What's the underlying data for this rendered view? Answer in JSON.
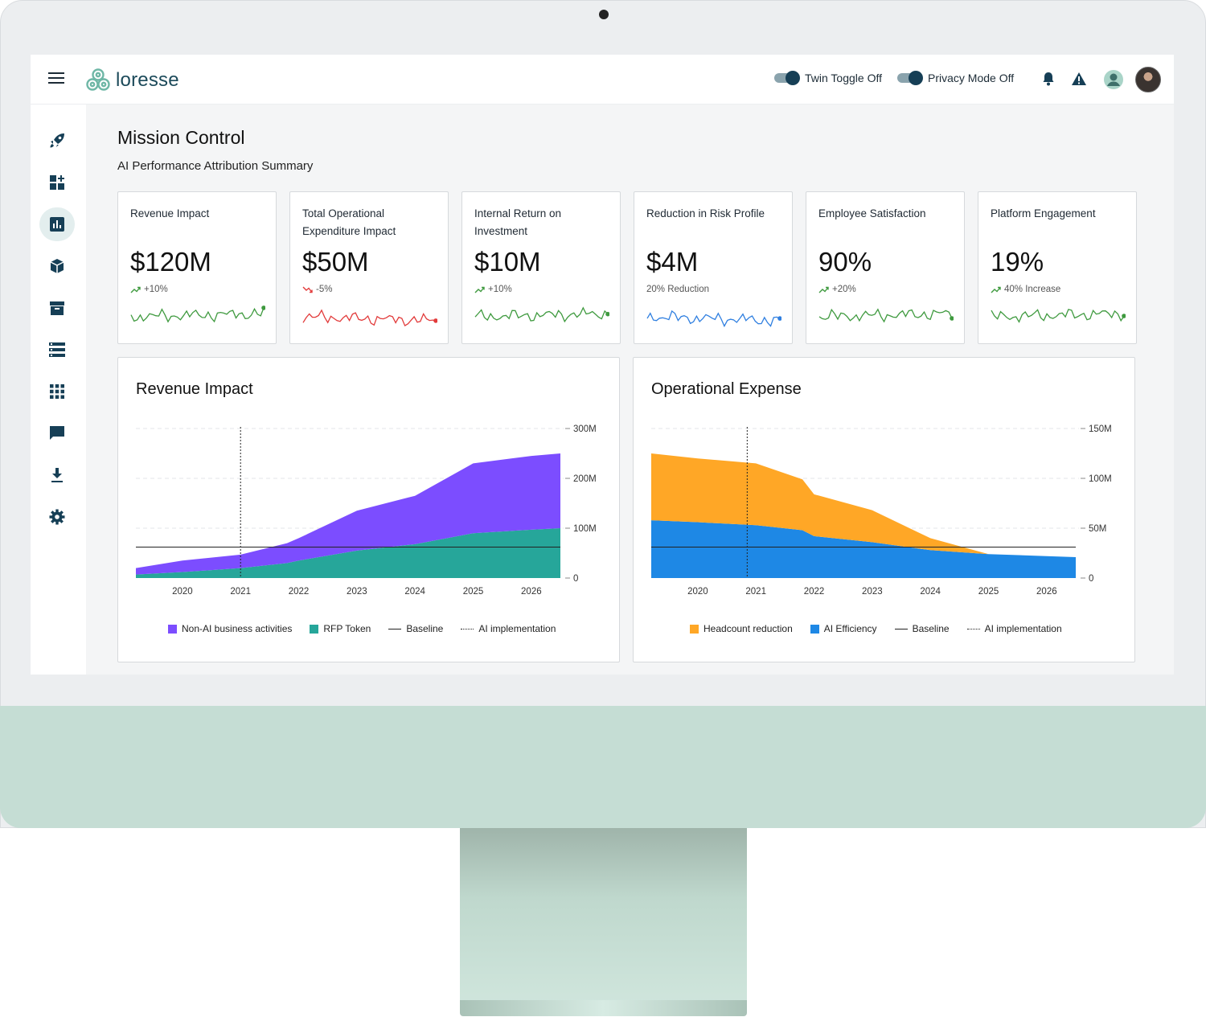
{
  "brand": {
    "name": "loresse"
  },
  "header": {
    "toggles": [
      {
        "label": "Twin Toggle Off"
      },
      {
        "label": "Privacy Mode Off"
      }
    ],
    "icons": [
      "bell-icon",
      "warning-icon",
      "contact-icon",
      "user-avatar"
    ]
  },
  "sidebar": {
    "items": [
      {
        "icon": "rocket-icon"
      },
      {
        "icon": "dashboard-add-icon"
      },
      {
        "icon": "analytics-icon",
        "active": true
      },
      {
        "icon": "cube-icon"
      },
      {
        "icon": "archive-icon"
      },
      {
        "icon": "list-icon"
      },
      {
        "icon": "apps-grid-icon"
      },
      {
        "icon": "chat-icon"
      },
      {
        "icon": "download-icon"
      },
      {
        "icon": "settings-icon"
      }
    ]
  },
  "page": {
    "title": "Mission Control",
    "subtitle": "AI Performance Attribution Summary"
  },
  "kpis": [
    {
      "label": "Revenue Impact",
      "value": "$120M",
      "delta": "+10%",
      "trend": "up",
      "color": "#3f9a3f"
    },
    {
      "label": "Total Operational Expenditure Impact",
      "value": "$50M",
      "delta": "-5%",
      "trend": "down",
      "color": "#e23b3b"
    },
    {
      "label": "Internal Return on Investment",
      "value": "$10M",
      "delta": "+10%",
      "trend": "up",
      "color": "#3f9a3f"
    },
    {
      "label": "Reduction in Risk Profile",
      "value": "$4M",
      "delta": "20% Reduction",
      "trend": "none",
      "color": "#2f7fe0"
    },
    {
      "label": "Employee Satisfaction",
      "value": "90%",
      "delta": "+20%",
      "trend": "up",
      "color": "#3f9a3f"
    },
    {
      "label": "Platform Engagement",
      "value": "19%",
      "delta": "40% Increase",
      "trend": "up",
      "color": "#3f9a3f"
    }
  ],
  "chart_data": [
    {
      "type": "area",
      "title": "Revenue Impact",
      "x": [
        2019.2,
        2020.0,
        2021.0,
        2021.8,
        2022.0,
        2023.0,
        2024.0,
        2025.0,
        2026.0,
        2026.5
      ],
      "xticks": [
        "2020",
        "2021",
        "2022",
        "2023",
        "2024",
        "2025",
        "2026"
      ],
      "yticks": [
        "300M",
        "200M",
        "100M",
        "0"
      ],
      "ylim": [
        0,
        300
      ],
      "stacked": true,
      "series": [
        {
          "name": "RFP Token",
          "color": "#26a69a",
          "values": [
            7,
            12,
            20,
            30,
            35,
            55,
            68,
            90,
            97,
            100
          ]
        },
        {
          "name": "Non-AI business activities",
          "color": "#7c4dff",
          "values": [
            13,
            23,
            27,
            40,
            45,
            80,
            97,
            140,
            148,
            150
          ]
        }
      ],
      "baseline": {
        "name": "Baseline",
        "value": 62
      },
      "marker": {
        "name": "AI implementation",
        "x": 2021.0
      },
      "legend": [
        "Non-AI business activities",
        "RFP Token",
        "Baseline",
        "AI implementation"
      ]
    },
    {
      "type": "area",
      "title": "Operational Expense",
      "x": [
        2019.2,
        2020.0,
        2021.0,
        2021.8,
        2022.0,
        2023.0,
        2024.0,
        2025.0,
        2026.0,
        2026.5
      ],
      "xticks": [
        "2020",
        "2021",
        "2022",
        "2023",
        "2024",
        "2025",
        "2026"
      ],
      "yticks": [
        "150M",
        "100M",
        "50M",
        "0"
      ],
      "ylim": [
        0,
        150
      ],
      "stacked": true,
      "series": [
        {
          "name": "AI Efficiency",
          "color": "#1e88e5",
          "values": [
            58,
            56,
            53,
            48,
            42,
            36,
            28,
            24,
            22,
            21
          ]
        },
        {
          "name": "Headcount reduction",
          "color": "#ffa726",
          "values": [
            67,
            64,
            62,
            51,
            42,
            32,
            12,
            0,
            0,
            0
          ]
        }
      ],
      "baseline": {
        "name": "Baseline",
        "value": 31
      },
      "marker": {
        "name": "AI implementation",
        "x": 2020.85
      },
      "legend": [
        "Headcount reduction",
        "AI Efficiency",
        "Baseline",
        "AI implementation"
      ]
    }
  ]
}
